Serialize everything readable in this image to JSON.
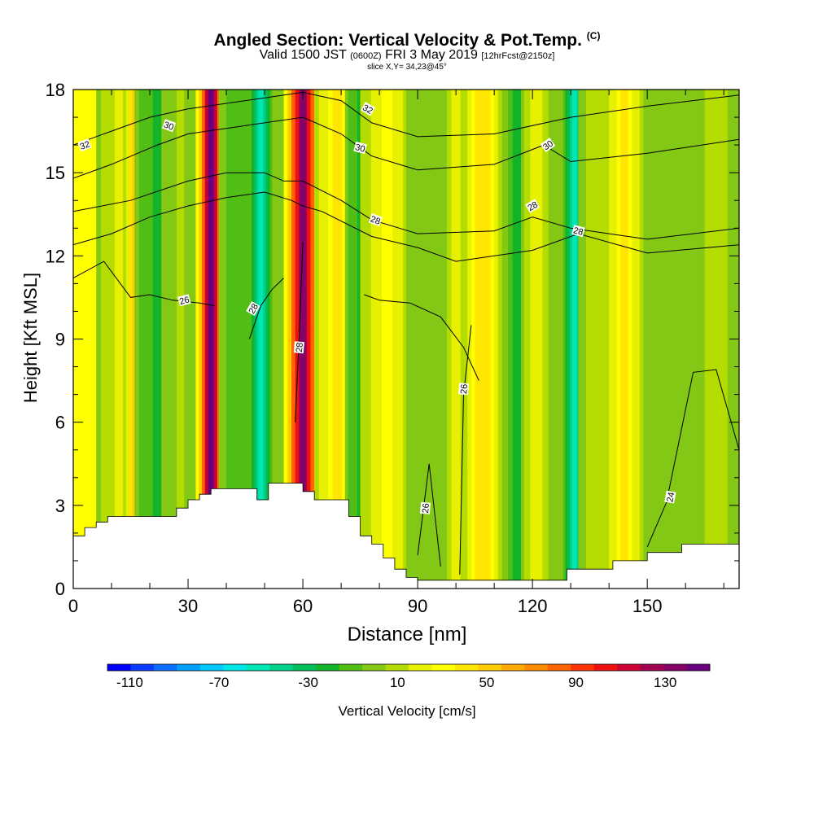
{
  "title": {
    "main": "Angled Section: Vertical Velocity & Pot.Temp.",
    "copyright": "(C)",
    "valid_prefix": "Valid 1500 JST",
    "utc": "(0600Z)",
    "date": "FRI 3 May 2019",
    "forecast": "[12hrFcst@2150z]",
    "slice": "slice X,Y= 34,23@45°"
  },
  "chart_data": {
    "type": "heatmap",
    "xlabel": "Distance [nm]",
    "ylabel": "Height [Kft MSL]",
    "xlim": [
      0,
      174
    ],
    "ylim": [
      0,
      18
    ],
    "x_ticks": [
      "0",
      "30",
      "60",
      "90",
      "120",
      "150"
    ],
    "y_ticks": [
      "0",
      "3",
      "6",
      "9",
      "12",
      "15",
      "18"
    ],
    "colorbar": {
      "label": "Vertical Velocity [cm/s]",
      "tick_labels": [
        "-110",
        "-70",
        "-30",
        "10",
        "50",
        "90",
        "130"
      ],
      "range": [
        -120,
        150
      ],
      "colors": [
        "#0000ff",
        "#0a3cff",
        "#0a6eff",
        "#00a0ff",
        "#00c8ff",
        "#00e6e6",
        "#00e6b4",
        "#00d28c",
        "#00be5a",
        "#14b428",
        "#50be14",
        "#82c814",
        "#b4dc00",
        "#e6f000",
        "#ffff00",
        "#ffe600",
        "#ffcc00",
        "#ffaa00",
        "#ff8c00",
        "#ff6400",
        "#ff3200",
        "#ee1010",
        "#cc0030",
        "#a00050",
        "#880068",
        "#6a0080"
      ]
    },
    "velocity_columns": [
      {
        "x": 3,
        "w": 8,
        "value": 35
      },
      {
        "x": 12,
        "w": 6,
        "value": 15
      },
      {
        "x": 17,
        "w": 4,
        "value": 60
      },
      {
        "x": 22,
        "w": 6,
        "value": -20
      },
      {
        "x": 28,
        "w": 5,
        "value": 5
      },
      {
        "x": 36,
        "w": 4,
        "value": 140
      },
      {
        "x": 43,
        "w": 5,
        "value": -10
      },
      {
        "x": 49,
        "w": 3,
        "value": -55
      },
      {
        "x": 60,
        "w": 5,
        "value": 130
      },
      {
        "x": 69,
        "w": 6,
        "value": 40
      },
      {
        "x": 75,
        "w": 4,
        "value": -20
      },
      {
        "x": 82,
        "w": 7,
        "value": 30
      },
      {
        "x": 92,
        "w": 5,
        "value": -5
      },
      {
        "x": 100,
        "w": 3,
        "value": 20
      },
      {
        "x": 107,
        "w": 5,
        "value": 45
      },
      {
        "x": 116,
        "w": 3,
        "value": -25
      },
      {
        "x": 121,
        "w": 4,
        "value": 20
      },
      {
        "x": 131,
        "w": 3,
        "value": -50
      },
      {
        "x": 137,
        "w": 5,
        "value": 10
      },
      {
        "x": 144,
        "w": 5,
        "value": 40
      },
      {
        "x": 156,
        "w": 7,
        "value": -5
      },
      {
        "x": 168,
        "w": 5,
        "value": 10
      }
    ],
    "terrain": {
      "x": [
        0,
        3,
        3,
        6,
        6,
        9,
        9,
        27,
        27,
        30,
        30,
        33,
        33,
        36,
        36,
        48,
        48,
        51,
        51,
        54,
        54,
        60,
        60,
        63,
        63,
        66,
        66,
        72,
        72,
        75,
        75,
        78,
        78,
        81,
        81,
        84,
        84,
        87,
        87,
        90,
        90,
        93,
        93,
        129,
        129,
        141,
        141,
        150,
        150,
        159,
        159,
        165,
        165,
        174
      ],
      "y": [
        1.9,
        1.9,
        2.2,
        2.2,
        2.4,
        2.4,
        2.6,
        2.6,
        2.9,
        2.9,
        3.2,
        3.2,
        3.4,
        3.4,
        3.6,
        3.6,
        3.2,
        3.2,
        3.8,
        3.8,
        3.8,
        3.8,
        3.5,
        3.5,
        3.2,
        3.2,
        3.2,
        3.2,
        2.6,
        2.6,
        1.9,
        1.9,
        1.6,
        1.6,
        1.1,
        1.1,
        0.7,
        0.7,
        0.4,
        0.4,
        0.3,
        0.3,
        0.3,
        0.3,
        0.7,
        0.7,
        1.0,
        1.0,
        1.3,
        1.3,
        1.6,
        1.6,
        1.6,
        1.6
      ]
    },
    "isentropes": [
      {
        "label": "32",
        "x": [
          0,
          10,
          20,
          30,
          40,
          50,
          60,
          70,
          78,
          90,
          110,
          130,
          150,
          174
        ],
        "y": [
          16.0,
          16.5,
          17.0,
          17.3,
          17.5,
          17.7,
          17.9,
          17.6,
          16.8,
          16.3,
          16.4,
          17.0,
          17.4,
          17.8
        ]
      },
      {
        "label": "30",
        "x": [
          0,
          10,
          22,
          30,
          40,
          50,
          60,
          70,
          78,
          90,
          110,
          123,
          130,
          150,
          174
        ],
        "y": [
          14.8,
          15.3,
          16.0,
          16.4,
          16.6,
          16.8,
          17.0,
          16.4,
          15.6,
          15.1,
          15.3,
          16.0,
          15.4,
          15.7,
          16.2
        ]
      },
      {
        "label": "28",
        "x": [
          0,
          15,
          30,
          40,
          50,
          55,
          60,
          70,
          78,
          90,
          110,
          120,
          130,
          150,
          174
        ],
        "y": [
          13.6,
          14.0,
          14.7,
          15.0,
          15.0,
          14.7,
          14.7,
          14.0,
          13.3,
          12.8,
          12.9,
          13.4,
          13.0,
          12.6,
          13.0
        ]
      },
      {
        "label": "28",
        "x": [
          0,
          10,
          20,
          30,
          40,
          50,
          57,
          60,
          65,
          78,
          90,
          100,
          120,
          132,
          150,
          174
        ],
        "y": [
          12.4,
          12.8,
          13.4,
          13.8,
          14.1,
          14.3,
          14.0,
          13.8,
          13.6,
          12.7,
          12.3,
          11.8,
          12.2,
          12.8,
          12.1,
          12.4
        ]
      },
      {
        "label": "26",
        "x": [
          0,
          8,
          15,
          20,
          26,
          33,
          37
        ],
        "y": [
          11.2,
          11.8,
          10.5,
          10.6,
          10.4,
          10.3,
          10.2
        ]
      },
      {
        "label": "28",
        "x": [
          46,
          49,
          52,
          55
        ],
        "y": [
          9.0,
          10.2,
          10.8,
          11.2
        ]
      },
      {
        "label": "28",
        "x": [
          58,
          59,
          60
        ],
        "y": [
          6.0,
          9.0,
          12.5
        ]
      },
      {
        "label": "26",
        "x": [
          76,
          80,
          88,
          96,
          102,
          104,
          106
        ],
        "y": [
          10.6,
          10.4,
          10.3,
          9.8,
          8.7,
          8.1,
          7.5
        ]
      },
      {
        "label": "26",
        "x": [
          101,
          102,
          104
        ],
        "y": [
          0.5,
          7.0,
          9.5
        ]
      },
      {
        "label": "26",
        "x": [
          90,
          93,
          96
        ],
        "y": [
          1.2,
          4.5,
          0.8
        ]
      },
      {
        "label": "24",
        "x": [
          150,
          155,
          162,
          168,
          174
        ],
        "y": [
          1.5,
          3.1,
          7.8,
          7.9,
          5.0
        ]
      }
    ],
    "contour_labels": [
      {
        "text": "32",
        "x": 3,
        "y": 16.0,
        "angle": -20
      },
      {
        "text": "30",
        "x": 25,
        "y": 16.7,
        "angle": 20
      },
      {
        "text": "32",
        "x": 77,
        "y": 17.3,
        "angle": 30
      },
      {
        "text": "30",
        "x": 75,
        "y": 15.9,
        "angle": 15
      },
      {
        "text": "30",
        "x": 124,
        "y": 16.0,
        "angle": -35
      },
      {
        "text": "28",
        "x": 79,
        "y": 13.3,
        "angle": 20
      },
      {
        "text": "28",
        "x": 120,
        "y": 13.8,
        "angle": -30
      },
      {
        "text": "28",
        "x": 132,
        "y": 12.9,
        "angle": 15
      },
      {
        "text": "26",
        "x": 29,
        "y": 10.4,
        "angle": -15
      },
      {
        "text": "28",
        "x": 47,
        "y": 10.1,
        "angle": -60
      },
      {
        "text": "28",
        "x": 59,
        "y": 8.7,
        "angle": -85
      },
      {
        "text": "26",
        "x": 102,
        "y": 7.2,
        "angle": -85
      },
      {
        "text": "26",
        "x": 92,
        "y": 2.9,
        "angle": -85
      },
      {
        "text": "24",
        "x": 156,
        "y": 3.3,
        "angle": -80
      }
    ]
  }
}
